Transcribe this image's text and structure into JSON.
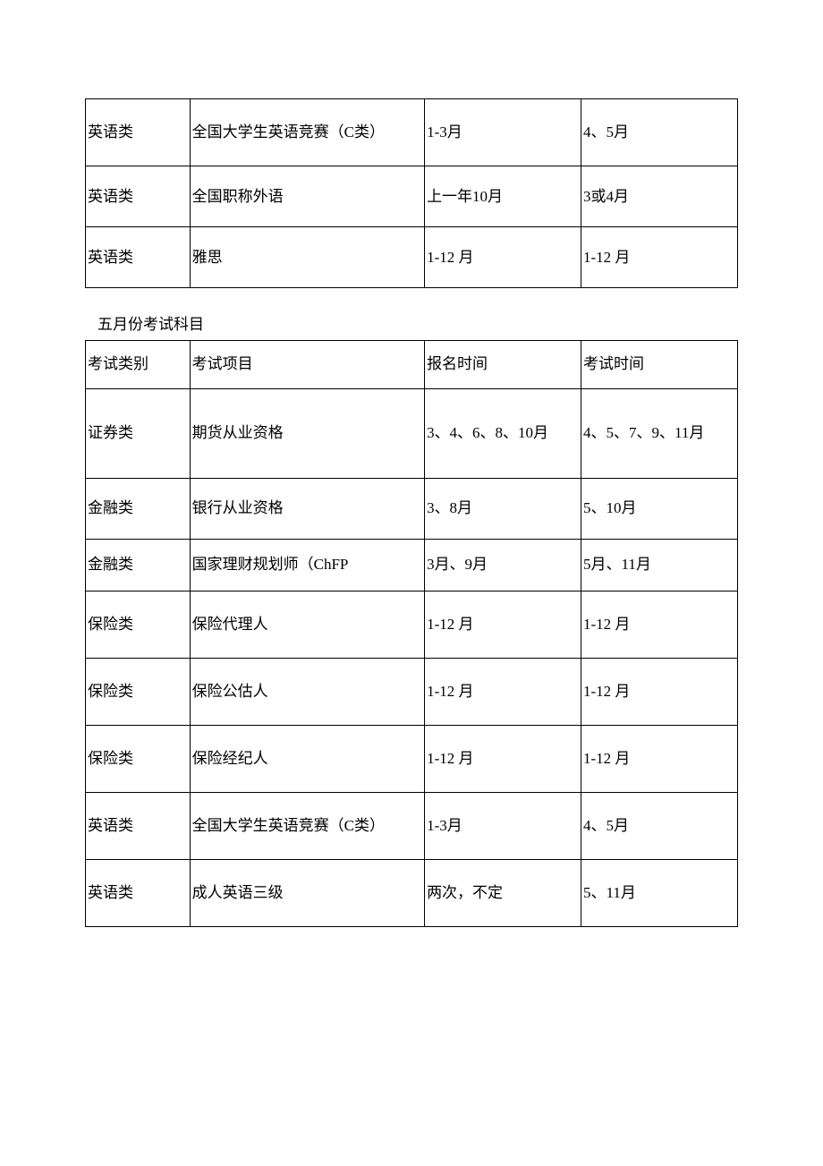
{
  "table1": {
    "rows": [
      {
        "c1": "英语类",
        "c2": "全国大学生英语竞赛（C类）",
        "c3": "1-3月",
        "c4": "4、5月"
      },
      {
        "c1": "英语类",
        "c2": "全国职称外语",
        "c3": "上一年10月",
        "c4": "3或4月"
      },
      {
        "c1": "英语类",
        "c2": "雅思",
        "c3": "1-12 月",
        "c4": "1-12 月"
      }
    ]
  },
  "section_title": "五月份考试科目",
  "table2": {
    "header": {
      "c1": "考试类别",
      "c2": "考试项目",
      "c3": "报名时间",
      "c4": "考试时间"
    },
    "rows": [
      {
        "c1": "证券类",
        "c2": "期货从业资格",
        "c3": "3、4、6、8、10月",
        "c4": "4、5、7、9、11月"
      },
      {
        "c1": "金融类",
        "c2": "银行从业资格",
        "c3": "3、8月",
        "c4": "5、10月"
      },
      {
        "c1": "金融类",
        "c2": "国家理财规划师（ChFP",
        "c3": "3月、9月",
        "c4": "5月、11月"
      },
      {
        "c1": "保险类",
        "c2": "保险代理人",
        "c3": "1-12 月",
        "c4": "1-12 月"
      },
      {
        "c1": "保险类",
        "c2": "保险公估人",
        "c3": "1-12 月",
        "c4": "1-12 月"
      },
      {
        "c1": "保险类",
        "c2": "保险经纪人",
        "c3": "1-12 月",
        "c4": "1-12 月"
      },
      {
        "c1": "英语类",
        "c2": "全国大学生英语竞赛（C类）",
        "c3": "1-3月",
        "c4": "4、5月"
      },
      {
        "c1": "英语类",
        "c2": "成人英语三级",
        "c3": "两次，不定",
        "c4": "5、11月"
      }
    ]
  }
}
